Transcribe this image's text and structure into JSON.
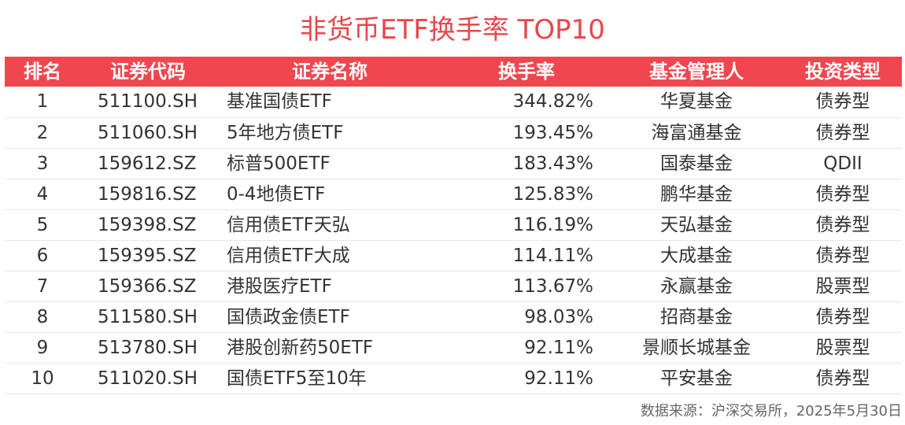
{
  "title": "非货币ETF换手率 TOP10",
  "table": {
    "headers": [
      "排名",
      "证券代码",
      "证券名称",
      "换手率",
      "基金管理人",
      "投资类型"
    ],
    "rows": [
      [
        "1",
        "511100.SH",
        "基准国债ETF",
        "344.82%",
        "华夏基金",
        "债券型"
      ],
      [
        "2",
        "511060.SH",
        "5年地方债ETF",
        "193.45%",
        "海富通基金",
        "债券型"
      ],
      [
        "3",
        "159612.SZ",
        "标普500ETF",
        "183.43%",
        "国泰基金",
        "QDII"
      ],
      [
        "4",
        "159816.SZ",
        "0-4地债ETF",
        "125.83%",
        "鹏华基金",
        "债券型"
      ],
      [
        "5",
        "159398.SZ",
        "信用债ETF天弘",
        "116.19%",
        "天弘基金",
        "债券型"
      ],
      [
        "6",
        "159395.SZ",
        "信用债ETF大成",
        "114.11%",
        "大成基金",
        "债券型"
      ],
      [
        "7",
        "159366.SZ",
        "港股医疗ETF",
        "113.67%",
        "永赢基金",
        "股票型"
      ],
      [
        "8",
        "511580.SH",
        "国债政金债ETF",
        "98.03%",
        "招商基金",
        "债券型"
      ],
      [
        "9",
        "513780.SH",
        "港股创新药50ETF",
        "92.11%",
        "景顺长城基金",
        "股票型"
      ],
      [
        "10",
        "511020.SH",
        "国债ETF5至10年",
        "92.11%",
        "平安基金",
        "债券型"
      ]
    ]
  },
  "source": "数据来源：沪深交易所，2025年5月30日",
  "colors": {
    "accent": "#f0464f",
    "title": "#e8474c",
    "text": "#333333"
  }
}
